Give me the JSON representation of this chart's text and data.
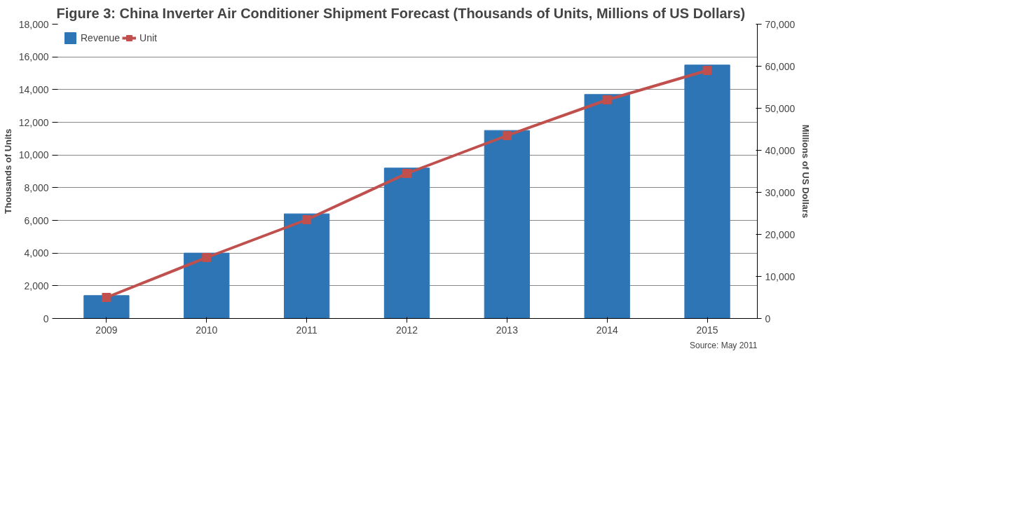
{
  "chart_data": {
    "type": "bar",
    "title": "Figure 3: China Inverter Air Conditioner Shipment Forecast (Thousands of Units, Millions of US Dollars)",
    "categories": [
      "2009",
      "2010",
      "2011",
      "2012",
      "2013",
      "2014",
      "2015"
    ],
    "series": [
      {
        "name": "Revenue",
        "color": "#2e75b6",
        "values": [
          1400,
          4000,
          6400,
          9200,
          11500,
          13700,
          15500
        ]
      },
      {
        "name": "Unit",
        "type": "line",
        "axis": "y2",
        "color": "#c0504d",
        "marker": "square",
        "values": [
          5000,
          14500,
          23500,
          34500,
          43500,
          52000,
          59000
        ]
      }
    ],
    "ylabel": "Thousands of Units",
    "y2label": "Millions of US Dollars",
    "ylim": [
      0,
      18000
    ],
    "yticks": [
      0,
      {
        "value": 2000,
        "label": "2,000"
      },
      {
        "value": 4000,
        "label": "4,000"
      },
      {
        "value": 6000,
        "label": "6,000"
      },
      {
        "value": 8000,
        "label": "8,000"
      },
      {
        "value": 10000,
        "label": "10,000"
      },
      {
        "value": 12000,
        "label": "12,000"
      },
      {
        "value": 14000,
        "label": "14,000"
      },
      {
        "value": 16000,
        "label": "16,000"
      },
      {
        "value": 18000,
        "label": "18,000"
      }
    ],
    "y2lim": [
      0,
      70000
    ],
    "y2ticks": [
      0,
      {
        "value": 10000,
        "label": "10,000"
      },
      {
        "value": 20000,
        "label": "20,000"
      },
      {
        "value": 30000,
        "label": "30,000"
      },
      {
        "value": 40000,
        "label": "40,000"
      },
      {
        "value": 50000,
        "label": "50,000"
      },
      {
        "value": 60000,
        "label": "60,000"
      },
      {
        "value": 70000,
        "label": "70,000"
      }
    ],
    "grid": "y",
    "legend": "top left",
    "annotations": [
      "Source: May 2011"
    ]
  }
}
